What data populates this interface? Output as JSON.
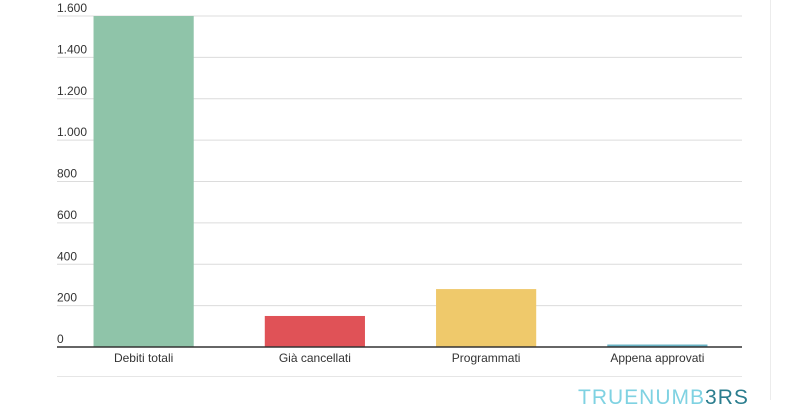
{
  "chart_data": {
    "type": "bar",
    "categories": [
      "Debiti totali",
      "Già cancellati",
      "Programmati",
      "Appena approvati"
    ],
    "values": [
      1600,
      150,
      280,
      12
    ],
    "colors": [
      "#8fc4a9",
      "#e05257",
      "#efc96b",
      "#68b3c5"
    ],
    "title": "",
    "xlabel": "",
    "ylabel": "",
    "ylim": [
      0,
      1600
    ],
    "yticks": [
      0,
      200,
      400,
      600,
      800,
      1000,
      1200,
      1400,
      1600
    ],
    "ytick_labels": [
      "0",
      "200",
      "400",
      "600",
      "800",
      "1.000",
      "1.200",
      "1.400",
      "1.600"
    ],
    "grid": true,
    "legend": "none"
  },
  "brand": {
    "part1": "TRUE",
    "part2": "NUMB",
    "part3": "3RS"
  }
}
